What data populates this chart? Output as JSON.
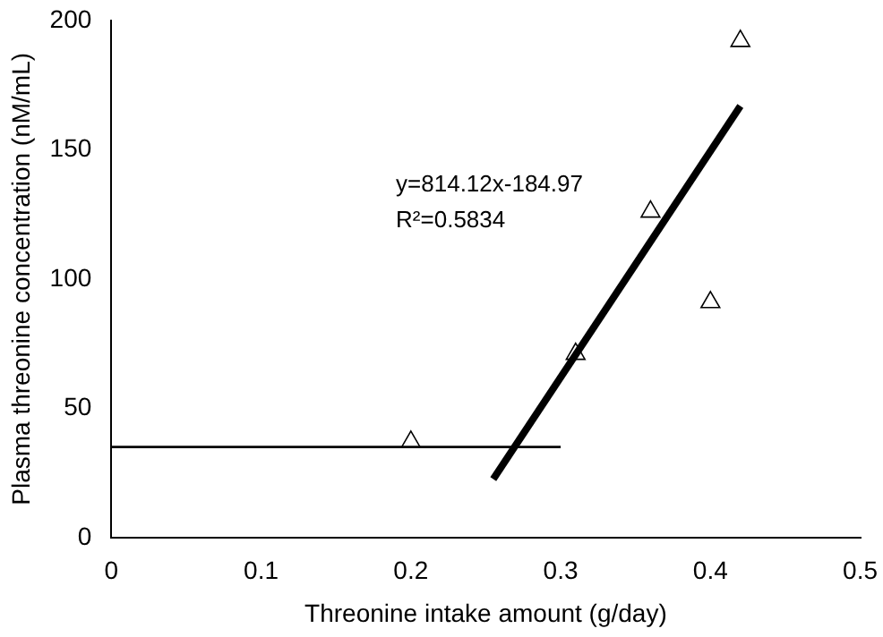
{
  "chart_data": {
    "type": "scatter",
    "xlabel": "Threonine intake amount (g/day)",
    "ylabel": "Plasma threonine concentration (nM/mL)",
    "xlim": [
      0,
      0.5
    ],
    "xticks": [
      0,
      0.1,
      0.2,
      0.3,
      0.4,
      0.5
    ],
    "ylim": [
      0,
      200
    ],
    "yticks": [
      0,
      50,
      100,
      150,
      200
    ],
    "grid": false,
    "legend": false,
    "series": [
      {
        "color": "#000000",
        "marker": "triangle",
        "x": [
          0.2,
          0.31,
          0.36,
          0.4,
          0.42
        ],
        "values": [
          37,
          71,
          126,
          91,
          192
        ]
      },
      {
        "type": "line",
        "marker": "none",
        "color": "#000000",
        "x": [
          0,
          0.3
        ],
        "values": [
          35,
          35
        ]
      },
      {
        "type": "line",
        "marker": "none",
        "color": "#000000",
        "x": [
          0.255,
          0.42
        ],
        "values": [
          22.6,
          166.9
        ]
      }
    ],
    "annotations": [
      "y=814.12x-184.97",
      "R²=0.5834"
    ]
  }
}
